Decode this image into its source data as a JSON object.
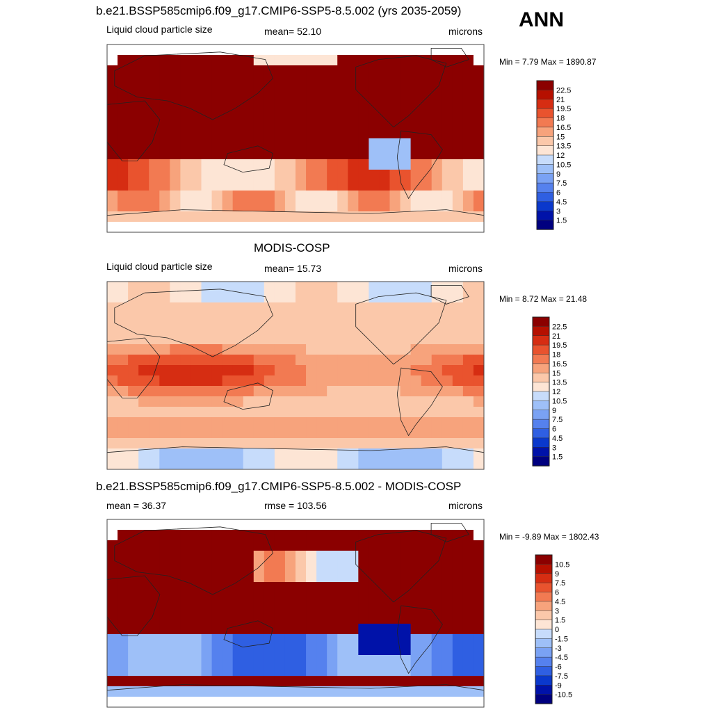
{
  "header": {
    "season": "ANN",
    "case_title": "b.e21.BSSP585cmip6.f09_g17.CMIP6-SSP5-8.5.002 (yrs 2035-2059)"
  },
  "panels": [
    {
      "title": "",
      "left_label": "Liquid cloud particle size",
      "center_label": "mean=  52.10",
      "right_label": "microns",
      "minmax_label": "Min =   7.79 Max = 1890.87"
    },
    {
      "title": "MODIS-COSP",
      "left_label": "Liquid cloud particle size",
      "center_label": "mean=  15.73",
      "right_label": "microns",
      "minmax_label": "Min =   8.72 Max =  21.48"
    },
    {
      "title": "b.e21.BSSP585cmip6.f09_g17.CMIP6-SSP5-8.5.002 - MODIS-COSP",
      "left_label": "mean =  36.37",
      "center_label": "rmse = 103.56",
      "right_label": "microns",
      "minmax_label": "Min =  -9.89 Max = 1802.43"
    }
  ],
  "chart_data": [
    {
      "type": "heatmap",
      "title": "b.e21.BSSP585cmip6.f09_g17.CMIP6-SSP5-8.5.002 (yrs 2035-2059)",
      "variable": "Liquid cloud particle size",
      "units": "microns",
      "mean": 52.1,
      "min": 7.79,
      "max": 1890.87,
      "colorbar_levels": [
        1.5,
        3,
        4.5,
        6,
        7.5,
        9,
        10.5,
        12,
        13.5,
        15,
        16.5,
        18,
        19.5,
        21,
        22.5
      ],
      "colorbar_colors": [
        "#00007f",
        "#0012a9",
        "#0a38cc",
        "#2f5fe2",
        "#5581ee",
        "#7aa2f4",
        "#9ec0f8",
        "#c7dcfb",
        "#fde5d5",
        "#fbc8aa",
        "#f7a37c",
        "#f27a52",
        "#e9532e",
        "#d62d12",
        "#b61000",
        "#8b0000"
      ]
    },
    {
      "type": "heatmap",
      "title": "MODIS-COSP",
      "variable": "Liquid cloud particle size",
      "units": "microns",
      "mean": 15.73,
      "min": 8.72,
      "max": 21.48,
      "colorbar_levels": [
        1.5,
        3,
        4.5,
        6,
        7.5,
        9,
        10.5,
        12,
        13.5,
        15,
        16.5,
        18,
        19.5,
        21,
        22.5
      ],
      "colorbar_colors": [
        "#00007f",
        "#0012a9",
        "#0a38cc",
        "#2f5fe2",
        "#5581ee",
        "#7aa2f4",
        "#9ec0f8",
        "#c7dcfb",
        "#fde5d5",
        "#fbc8aa",
        "#f7a37c",
        "#f27a52",
        "#e9532e",
        "#d62d12",
        "#b61000",
        "#8b0000"
      ]
    },
    {
      "type": "heatmap",
      "title": "b.e21.BSSP585cmip6.f09_g17.CMIP6-SSP5-8.5.002 - MODIS-COSP",
      "units": "microns",
      "mean": 36.37,
      "rmse": 103.56,
      "min": -9.89,
      "max": 1802.43,
      "colorbar_levels": [
        -10.5,
        -9,
        -7.5,
        -6,
        -4.5,
        -3,
        -1.5,
        0,
        1.5,
        3,
        4.5,
        6,
        7.5,
        9,
        10.5
      ],
      "colorbar_colors": [
        "#00007f",
        "#0012a9",
        "#0a38cc",
        "#2f5fe2",
        "#5581ee",
        "#7aa2f4",
        "#9ec0f8",
        "#c7dcfb",
        "#fde5d5",
        "#fbc8aa",
        "#f7a37c",
        "#f27a52",
        "#e9532e",
        "#d62d12",
        "#b61000",
        "#8b0000"
      ]
    }
  ]
}
